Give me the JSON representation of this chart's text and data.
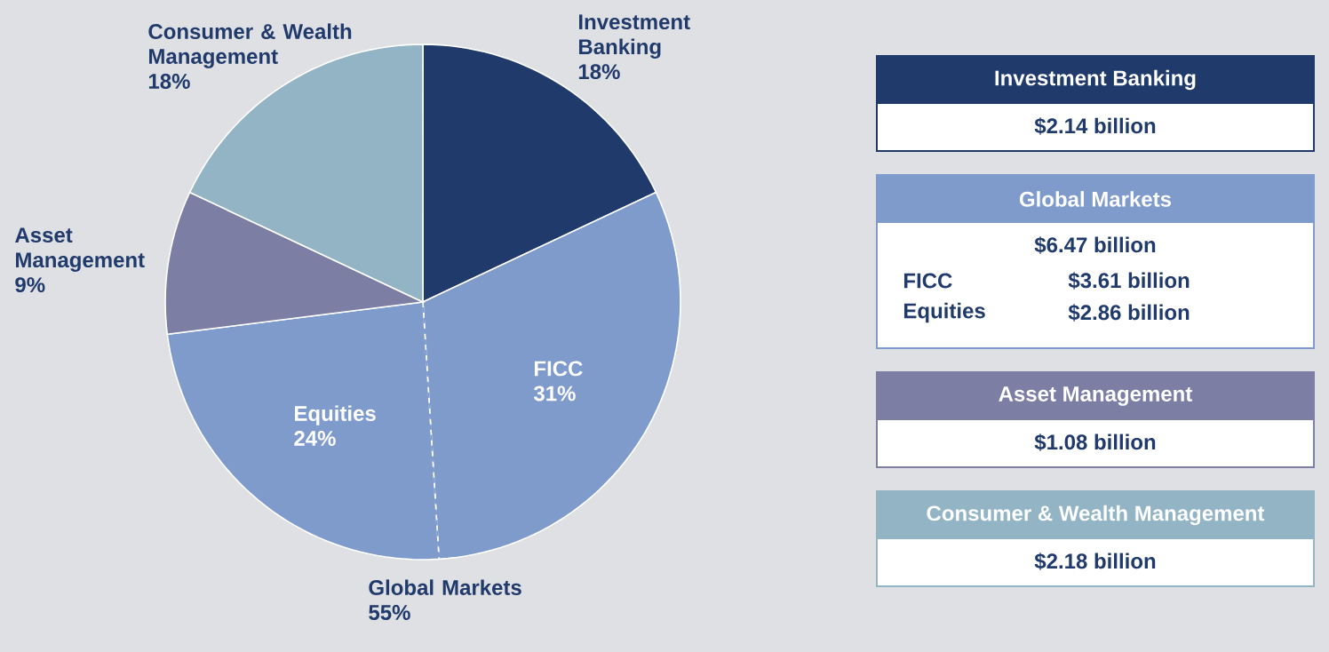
{
  "chart_data": [
    {
      "type": "pie",
      "categories": [
        "Investment Banking",
        "FICC",
        "Equities",
        "Asset Management",
        "Consumer & Wealth Management"
      ],
      "values": [
        18,
        31,
        24,
        9,
        18
      ],
      "colors": [
        "#203a6b",
        "#7f9bcc",
        "#7f9bcc",
        "#7c7ea4",
        "#93b4c5"
      ],
      "value_labels": [
        "18%",
        "31%",
        "24%",
        "9%",
        "18%"
      ],
      "annotations": [
        "Global Markets 55%"
      ]
    },
    {
      "type": "other",
      "categories": [
        "Investment Banking",
        "Global Markets",
        "Asset Management",
        "Consumer & Wealth Management"
      ],
      "colors": [
        "#203a6b",
        "#7f9bcc",
        "#7c7ea4",
        "#93b4c5"
      ],
      "value_labels": [
        "$2.14 billion",
        "$6.47 billion",
        "$1.08 billion",
        "$2.18 billion"
      ],
      "annotations": [
        "FICC",
        "$3.61 billion",
        "Equities",
        "$2.86 billion"
      ]
    }
  ]
}
